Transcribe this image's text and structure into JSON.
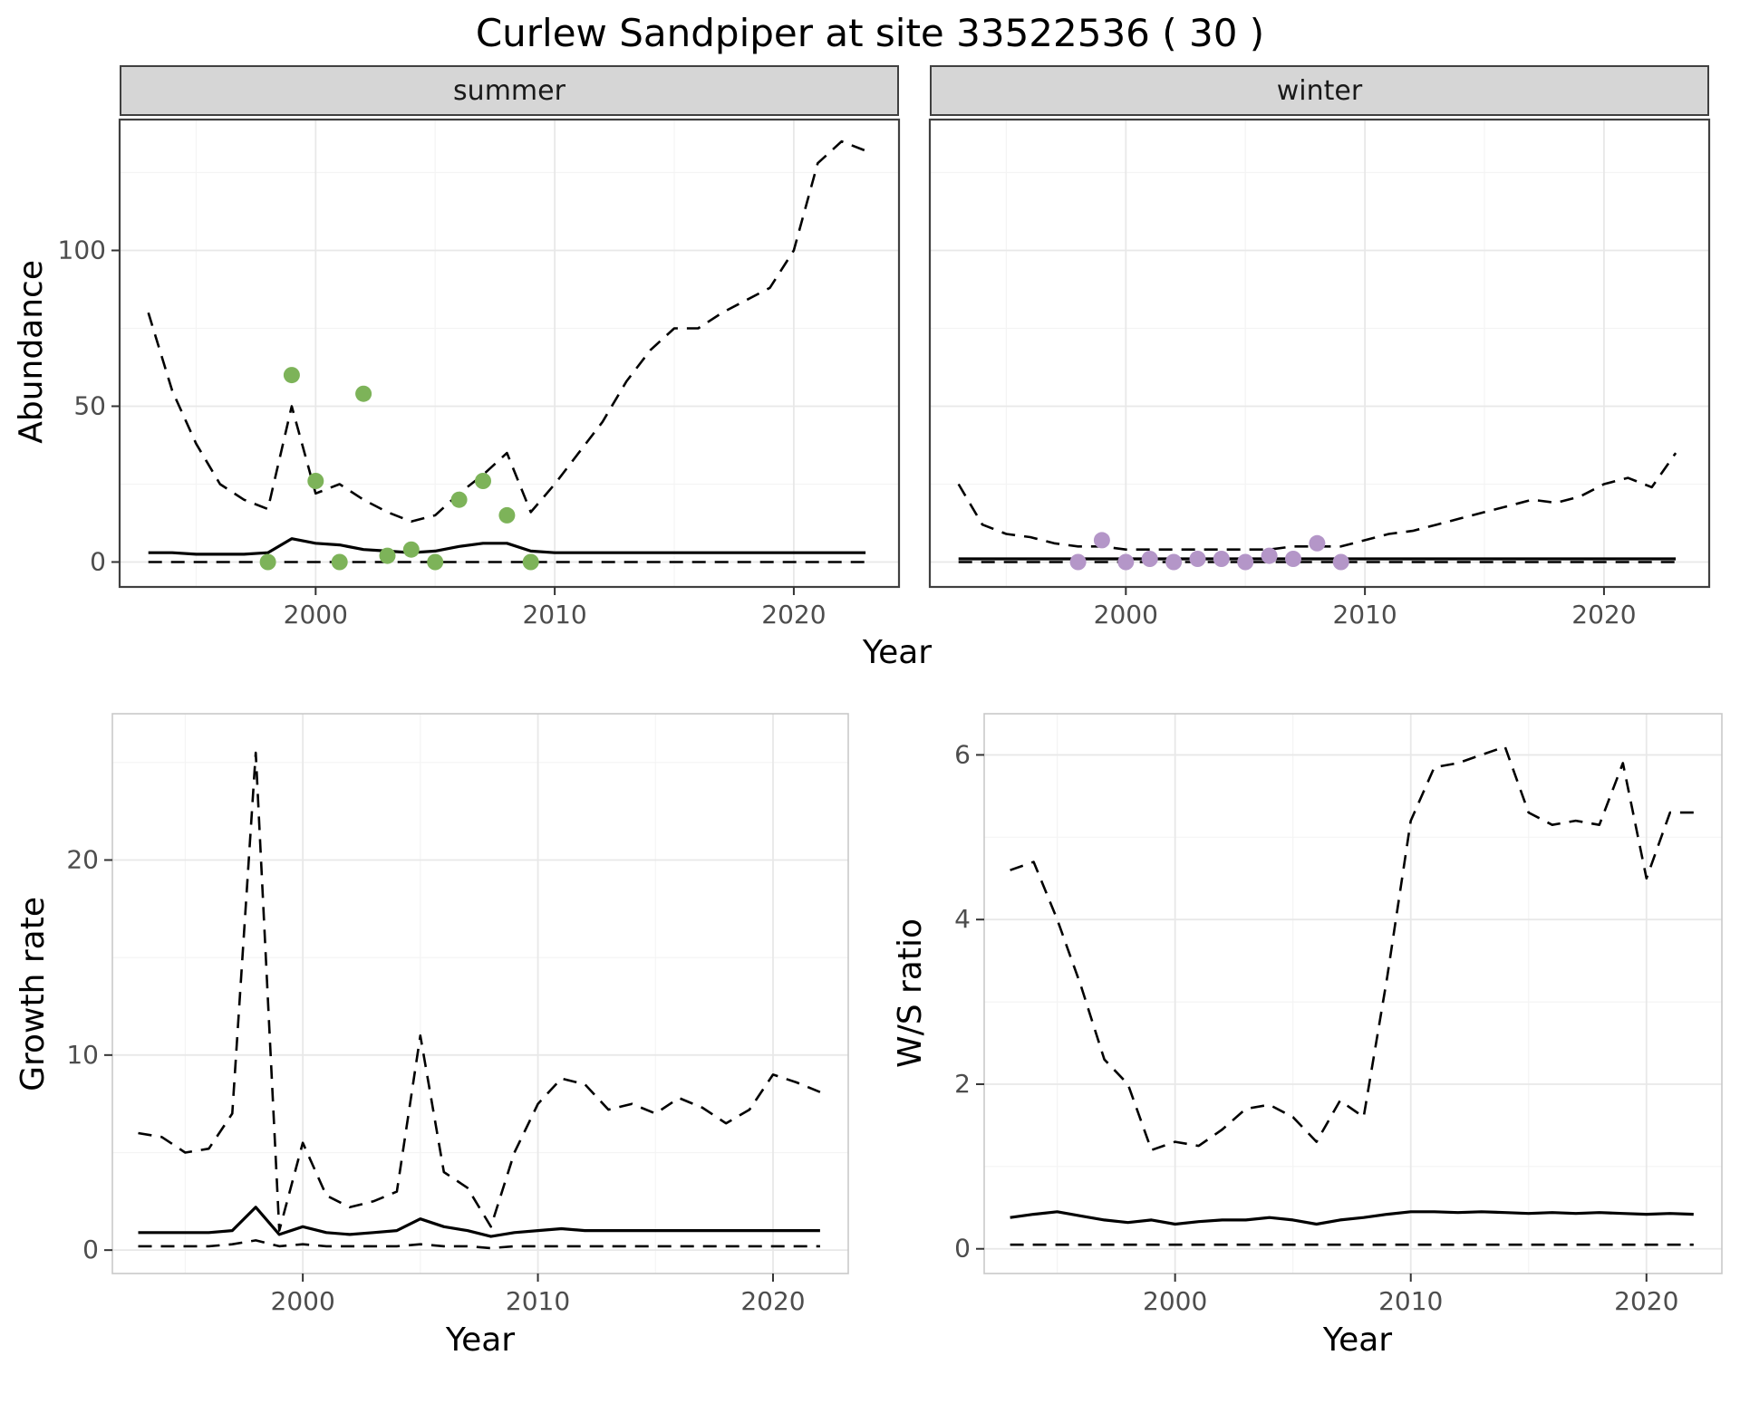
{
  "title": "Curlew Sandpiper at site 33522536 ( 30 )",
  "colors": {
    "summer_points": "#7db359",
    "winter_points": "#b496c8",
    "model_line": "#000000",
    "strip_bg": "#d6d6d6",
    "grid_major": "#e8e8e8",
    "grid_minor": "#f4f4f4",
    "panel_border_top": "#404040",
    "panel_border_bottom": "#c9c9c9",
    "tick_label": "#4d4d4d"
  },
  "top": {
    "ylabel": "Abundance",
    "xlabel": "Year",
    "facets": [
      {
        "label": "summer"
      },
      {
        "label": "winter"
      }
    ]
  },
  "bottom_left": {
    "ylabel": "Growth rate",
    "xlabel": "Year"
  },
  "bottom_right": {
    "ylabel": "W/S ratio",
    "xlabel": "Year"
  },
  "chart_data": [
    {
      "id": "abundance_summer",
      "type": "line",
      "facet": "summer",
      "title": "",
      "xlabel": "Year",
      "ylabel": "Abundance",
      "xlim": [
        1991.8,
        2024.4
      ],
      "ylim": [
        -8,
        142
      ],
      "xticks": [
        2000,
        2010,
        2020
      ],
      "xminor": [
        1995,
        2005,
        2015
      ],
      "yticks": [
        0,
        50,
        100
      ],
      "yminor": [
        25,
        75,
        125
      ],
      "x": [
        1993,
        1994,
        1995,
        1996,
        1997,
        1998,
        1999,
        2000,
        2001,
        2002,
        2003,
        2004,
        2005,
        2006,
        2007,
        2008,
        2009,
        2010,
        2011,
        2012,
        2013,
        2014,
        2015,
        2016,
        2017,
        2018,
        2019,
        2020,
        2021,
        2022,
        2023
      ],
      "series": [
        {
          "name": "ci_upper",
          "style": "dashed",
          "y": [
            80,
            55,
            38,
            25,
            20,
            17,
            50,
            22,
            25,
            20,
            16,
            13,
            15,
            22,
            28,
            35,
            16,
            25,
            35,
            45,
            58,
            68,
            75,
            75,
            80,
            84,
            88,
            100,
            128,
            135,
            132
          ]
        },
        {
          "name": "median",
          "style": "solid",
          "y": [
            3,
            3,
            2.5,
            2.5,
            2.5,
            3,
            7.5,
            6,
            5.5,
            4,
            3.5,
            3,
            3.5,
            5,
            6,
            6,
            3.5,
            3,
            3,
            3,
            3,
            3,
            3,
            3,
            3,
            3,
            3,
            3,
            3,
            3,
            3
          ]
        },
        {
          "name": "ci_lower",
          "style": "dashed",
          "y": [
            0,
            0,
            0,
            0,
            0,
            0,
            0,
            0,
            0,
            0,
            0,
            0,
            0,
            0,
            0,
            0,
            0,
            0,
            0,
            0,
            0,
            0,
            0,
            0,
            0,
            0,
            0,
            0,
            0,
            0,
            0
          ]
        },
        {
          "name": "observed_counts",
          "style": "points",
          "color": "#7db359",
          "x": [
            1998,
            1999,
            2000,
            2001,
            2002,
            2003,
            2004,
            2005,
            2006,
            2007,
            2008,
            2009
          ],
          "y": [
            0,
            60,
            26,
            0,
            54,
            2,
            4,
            0,
            20,
            26,
            15,
            0
          ]
        }
      ]
    },
    {
      "id": "abundance_winter",
      "type": "line",
      "facet": "winter",
      "title": "",
      "xlabel": "Year",
      "ylabel": "Abundance",
      "xlim": [
        1991.8,
        2024.4
      ],
      "ylim": [
        -8,
        142
      ],
      "xticks": [
        2000,
        2010,
        2020
      ],
      "xminor": [
        1995,
        2005,
        2015
      ],
      "yticks": [
        0,
        50,
        100
      ],
      "yminor": [
        25,
        75,
        125
      ],
      "x": [
        1993,
        1994,
        1995,
        1996,
        1997,
        1998,
        1999,
        2000,
        2001,
        2002,
        2003,
        2004,
        2005,
        2006,
        2007,
        2008,
        2009,
        2010,
        2011,
        2012,
        2013,
        2014,
        2015,
        2016,
        2017,
        2018,
        2019,
        2020,
        2021,
        2022,
        2023
      ],
      "series": [
        {
          "name": "ci_upper",
          "style": "dashed",
          "y": [
            25,
            12,
            9,
            8,
            6,
            5,
            5,
            4,
            4,
            4,
            4,
            4,
            4,
            4,
            5,
            5,
            5,
            7,
            9,
            10,
            12,
            14,
            16,
            18,
            20,
            19,
            21,
            25,
            27,
            24,
            35
          ]
        },
        {
          "name": "median",
          "style": "solid",
          "y": [
            1,
            1,
            1,
            1,
            1,
            1,
            1,
            1,
            1,
            1,
            1,
            1,
            1,
            1,
            1,
            1,
            1,
            1,
            1,
            1,
            1,
            1,
            1,
            1,
            1,
            1,
            1,
            1,
            1,
            1,
            1
          ]
        },
        {
          "name": "ci_lower",
          "style": "dashed",
          "y": [
            0,
            0,
            0,
            0,
            0,
            0,
            0,
            0,
            0,
            0,
            0,
            0,
            0,
            0,
            0,
            0,
            0,
            0,
            0,
            0,
            0,
            0,
            0,
            0,
            0,
            0,
            0,
            0,
            0,
            0,
            0
          ]
        },
        {
          "name": "observed_counts",
          "style": "points",
          "color": "#b496c8",
          "x": [
            1998,
            1999,
            2000,
            2001,
            2002,
            2003,
            2004,
            2005,
            2006,
            2007,
            2008,
            2009
          ],
          "y": [
            0,
            7,
            0,
            1,
            0,
            1,
            1,
            0,
            2,
            1,
            6,
            0
          ]
        }
      ]
    },
    {
      "id": "growth",
      "type": "line",
      "title": "",
      "xlabel": "Year",
      "ylabel": "Growth rate",
      "xlim": [
        1991.9,
        2023.2
      ],
      "ylim": [
        -1.2,
        27.5
      ],
      "xticks": [
        2000,
        2010,
        2020
      ],
      "xminor": [
        1995,
        2005,
        2015
      ],
      "yticks": [
        0,
        10,
        20
      ],
      "yminor": [
        5,
        15,
        25
      ],
      "x": [
        1993,
        1994,
        1995,
        1996,
        1997,
        1998,
        1999,
        2000,
        2001,
        2002,
        2003,
        2004,
        2005,
        2006,
        2007,
        2008,
        2009,
        2010,
        2011,
        2012,
        2013,
        2014,
        2015,
        2016,
        2017,
        2018,
        2019,
        2020,
        2021,
        2022
      ],
      "series": [
        {
          "name": "ci_upper",
          "style": "dashed",
          "y": [
            6,
            5.8,
            5,
            5.2,
            7,
            25.5,
            1,
            5.5,
            2.8,
            2.2,
            2.5,
            3,
            11,
            4,
            3.2,
            1.2,
            5,
            7.5,
            8.8,
            8.5,
            7.2,
            7.5,
            7,
            7.8,
            7.3,
            6.5,
            7.2,
            9,
            8.6,
            8.1
          ]
        },
        {
          "name": "median",
          "style": "solid",
          "y": [
            0.9,
            0.9,
            0.9,
            0.9,
            1.0,
            2.2,
            0.8,
            1.2,
            0.9,
            0.8,
            0.9,
            1.0,
            1.6,
            1.2,
            1.0,
            0.7,
            0.9,
            1.0,
            1.1,
            1.0,
            1.0,
            1.0,
            1.0,
            1.0,
            1.0,
            1.0,
            1.0,
            1.0,
            1.0,
            1.0
          ]
        },
        {
          "name": "ci_lower",
          "style": "dashed",
          "y": [
            0.2,
            0.2,
            0.2,
            0.2,
            0.3,
            0.5,
            0.2,
            0.3,
            0.2,
            0.2,
            0.2,
            0.2,
            0.3,
            0.2,
            0.2,
            0.1,
            0.2,
            0.2,
            0.2,
            0.2,
            0.2,
            0.2,
            0.2,
            0.2,
            0.2,
            0.2,
            0.2,
            0.2,
            0.2,
            0.2
          ]
        }
      ]
    },
    {
      "id": "ws_ratio",
      "type": "line",
      "title": "",
      "xlabel": "Year",
      "ylabel": "W/S ratio",
      "xlim": [
        1991.9,
        2023.2
      ],
      "ylim": [
        -0.3,
        6.5
      ],
      "xticks": [
        2000,
        2010,
        2020
      ],
      "xminor": [
        1995,
        2005,
        2015
      ],
      "yticks": [
        0,
        2,
        4,
        6
      ],
      "yminor": [
        1,
        3,
        5
      ],
      "x": [
        1993,
        1994,
        1995,
        1996,
        1997,
        1998,
        1999,
        2000,
        2001,
        2002,
        2003,
        2004,
        2005,
        2006,
        2007,
        2008,
        2009,
        2010,
        2011,
        2012,
        2013,
        2014,
        2015,
        2016,
        2017,
        2018,
        2019,
        2020,
        2021,
        2022
      ],
      "series": [
        {
          "name": "ci_upper",
          "style": "dashed",
          "y": [
            4.6,
            4.7,
            4.0,
            3.2,
            2.3,
            2.0,
            1.2,
            1.3,
            1.25,
            1.45,
            1.7,
            1.75,
            1.6,
            1.3,
            1.8,
            1.6,
            3.3,
            5.2,
            5.85,
            5.9,
            6.0,
            6.1,
            5.3,
            5.15,
            5.2,
            5.15,
            5.9,
            4.5,
            5.3,
            5.3
          ]
        },
        {
          "name": "median",
          "style": "solid",
          "y": [
            0.38,
            0.42,
            0.45,
            0.4,
            0.35,
            0.32,
            0.35,
            0.3,
            0.33,
            0.35,
            0.35,
            0.38,
            0.35,
            0.3,
            0.35,
            0.38,
            0.42,
            0.45,
            0.45,
            0.44,
            0.45,
            0.44,
            0.43,
            0.44,
            0.43,
            0.44,
            0.43,
            0.42,
            0.43,
            0.42
          ]
        },
        {
          "name": "ci_lower",
          "style": "dashed",
          "y": [
            0.05,
            0.05,
            0.05,
            0.05,
            0.05,
            0.05,
            0.05,
            0.05,
            0.05,
            0.05,
            0.05,
            0.05,
            0.05,
            0.05,
            0.05,
            0.05,
            0.05,
            0.05,
            0.05,
            0.05,
            0.05,
            0.05,
            0.05,
            0.05,
            0.05,
            0.05,
            0.05,
            0.05,
            0.05,
            0.05
          ]
        }
      ]
    }
  ]
}
